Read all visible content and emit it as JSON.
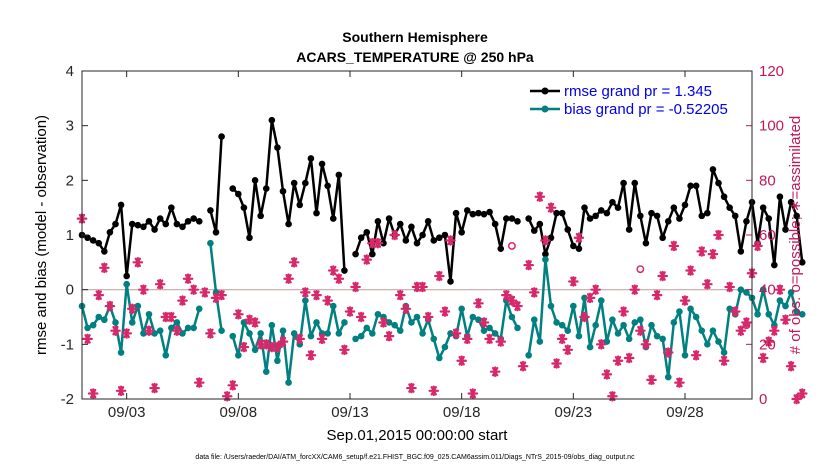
{
  "chart_data": {
    "type": "line",
    "title": "Southern Hemisphere",
    "subtitle": "ACARS_TEMPERATURE @ 250 hPa",
    "xlabel": "Sep.01,2015 00:00:00 start",
    "ylabel": "rmse and bias (model - observation)",
    "ylabel_right": "# of obs: o=possible; ∗=assimilated",
    "footnote": "data file: /Users/raeder/DAI/ATM_forcXX/CAM6_setup/f.e21.FHIST_BGC.f09_025.CAM6assim.011/Diags_NTrS_2015-09/obs_diag_output.nc",
    "xlim": [
      1.0,
      31.0
    ],
    "ylim": [
      -2,
      4
    ],
    "ylim_right": [
      0,
      120
    ],
    "x_ticks": [
      3,
      8,
      13,
      18,
      23,
      28
    ],
    "x_tick_labels": [
      "09/03",
      "09/08",
      "09/13",
      "09/18",
      "09/23",
      "09/28"
    ],
    "y_ticks": [
      -2,
      -1,
      0,
      1,
      2,
      3,
      4
    ],
    "y_tick_labels": [
      "-2",
      "-1",
      "0",
      "1",
      "2",
      "3",
      "4"
    ],
    "y_ticks_right": [
      0,
      20,
      40,
      60,
      80,
      100,
      120
    ],
    "y_tick_labels_right": [
      "0",
      "20",
      "40",
      "60",
      "80",
      "100",
      "120"
    ],
    "x_start": 1.0,
    "x_step": 0.25,
    "legend_position": "top-right",
    "legend": [
      "rmse grand pr = 1.345",
      "bias grand pr = -0.52205"
    ],
    "series": [
      {
        "name": "rmse grand pr = 1.345",
        "color": "#000000",
        "axis": "left",
        "values": [
          1.0,
          0.95,
          0.9,
          0.85,
          0.7,
          1.05,
          1.2,
          1.55,
          0.25,
          1.2,
          1.18,
          1.15,
          1.25,
          1.1,
          1.3,
          1.2,
          1.5,
          1.2,
          1.15,
          1.25,
          1.3,
          1.25,
          null,
          1.45,
          1.05,
          2.8,
          null,
          1.85,
          1.75,
          1.5,
          0.95,
          2.0,
          1.35,
          1.85,
          3.1,
          2.6,
          1.8,
          1.2,
          1.95,
          1.55,
          1.95,
          2.4,
          1.4,
          2.3,
          1.9,
          1.3,
          2.1,
          0.35,
          null,
          0.65,
          0.95,
          1.05,
          0.65,
          1.25,
          0.85,
          1.3,
          1.0,
          1.2,
          0.9,
          1.15,
          0.85,
          1.0,
          1.25,
          0.9,
          0.95,
          1.0,
          0.15,
          1.4,
          1.05,
          1.45,
          1.38,
          1.4,
          1.38,
          1.42,
          1.2,
          0.75,
          1.3,
          1.3,
          1.25,
          null,
          1.3,
          1.08,
          1.2,
          0.65,
          0.95,
          1.4,
          1.4,
          1.1,
          0.8,
          0.75,
          1.5,
          1.3,
          1.35,
          1.45,
          1.4,
          1.6,
          1.5,
          1.95,
          1.1,
          1.95,
          1.35,
          0.85,
          1.4,
          1.35,
          0.95,
          1.25,
          1.5,
          1.3,
          1.55,
          1.9,
          1.9,
          1.35,
          1.4,
          2.2,
          1.95,
          1.7,
          1.5,
          1.35,
          0.7,
          1.25,
          1.6,
          0.85,
          1.5,
          1.3,
          0.45,
          1.7,
          1.1,
          1.6,
          1.35,
          0.5
        ],
        "marker": "circle",
        "linewidth": 2.5
      },
      {
        "name": "bias grand pr = -0.52205",
        "color": "#008080",
        "axis": "left",
        "values": [
          -0.3,
          -0.7,
          -0.65,
          -0.5,
          -0.55,
          -0.3,
          -0.6,
          -1.15,
          0.1,
          -0.6,
          -0.3,
          -0.8,
          -0.45,
          -0.8,
          -0.75,
          -1.2,
          -0.7,
          -0.6,
          -0.8,
          -0.7,
          -0.7,
          -0.35,
          null,
          0.85,
          -0.05,
          -0.75,
          null,
          -0.85,
          -1.2,
          -0.6,
          -0.8,
          -1.1,
          -0.8,
          -1.5,
          -0.65,
          -1.3,
          -0.75,
          -1.7,
          -0.8,
          -1.0,
          -0.2,
          -0.85,
          -0.6,
          -0.8,
          -0.8,
          -0.3,
          -0.8,
          -0.6,
          null,
          -0.9,
          -0.85,
          -0.7,
          -0.8,
          -0.45,
          -0.5,
          -0.6,
          -0.65,
          -0.75,
          -0.3,
          -0.6,
          -0.5,
          -0.8,
          -0.55,
          -0.9,
          -1.25,
          -1.05,
          -0.8,
          -0.85,
          -0.35,
          -0.85,
          -0.5,
          -0.55,
          -0.75,
          -0.7,
          -0.8,
          -0.9,
          -0.2,
          -0.5,
          -0.7,
          null,
          -1.2,
          -0.55,
          -0.95,
          0.55,
          -0.3,
          -0.6,
          -0.65,
          -0.75,
          -0.3,
          -0.85,
          -0.15,
          -1.05,
          -0.65,
          -0.2,
          -0.95,
          -0.55,
          -0.8,
          -0.65,
          -0.9,
          -0.6,
          -0.55,
          -1.05,
          -0.65,
          -0.85,
          -0.9,
          -1.6,
          -0.6,
          -0.4,
          -1.2,
          -0.35,
          -0.5,
          -0.75,
          -1.0,
          -0.75,
          -0.95,
          -1.15,
          -0.35,
          -0.45,
          0.0,
          -0.05,
          -0.15,
          -0.45,
          0.0,
          -0.45,
          -0.65,
          -0.2,
          -0.3,
          -0.05,
          -0.4,
          -0.45
        ],
        "marker": "circle",
        "linewidth": 2.5
      },
      {
        "name": "",
        "color": "#d6286a",
        "axis": "right",
        "role": "observations assimilated",
        "marker": "asterisk",
        "values": [
          66,
          22,
          2,
          38,
          48,
          34,
          25,
          3,
          24,
          33,
          50,
          40,
          25,
          4,
          42,
          30,
          30,
          25,
          36,
          44,
          40,
          6,
          39,
          24,
          37,
          38,
          1,
          5,
          31,
          19,
          29,
          28,
          20,
          20,
          19,
          19,
          21,
          44,
          50,
          22,
          39,
          16,
          38,
          22,
          36,
          47,
          44,
          18,
          32,
          41,
          30,
          51,
          57,
          57,
          28,
          23,
          60,
          38,
          33,
          4,
          41,
          41,
          30,
          3,
          45,
          32,
          58,
          24,
          14,
          22,
          2,
          35,
          28,
          22,
          10,
          21,
          38,
          36,
          34,
          12,
          49,
          39,
          74,
          58,
          70,
          13,
          22,
          18,
          43,
          59,
          30,
          37,
          40,
          20,
          9,
          1,
          14,
          32,
          15,
          40,
          25,
          20,
          7,
          38,
          45,
          17,
          56,
          6,
          36,
          47,
          16,
          54,
          42,
          53,
          60,
          14,
          41,
          32,
          25,
          28,
          46,
          56,
          15,
          21,
          25,
          40,
          29,
          12,
          0,
          2
        ]
      },
      {
        "name": "",
        "color": "#d6286a",
        "axis": "right",
        "role": "observations possible",
        "marker": "circle-open",
        "points": [
          [
            20.25,
            56.0
          ],
          [
            26.0,
            47.5
          ],
          [
            30.75,
            27.0
          ]
        ]
      }
    ]
  }
}
